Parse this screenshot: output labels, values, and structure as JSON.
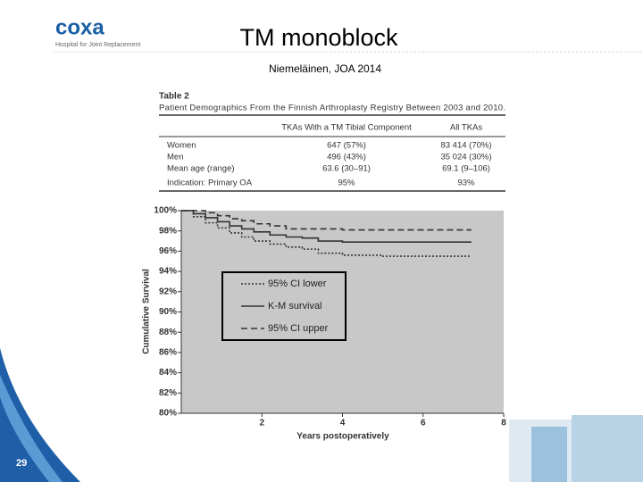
{
  "logo": {
    "name": "coxa",
    "tagline": "Hospital for Joint Replacement"
  },
  "slide": {
    "title": "TM monoblock",
    "subtitle": "Niemeläinen, JOA 2014",
    "page_number": "29"
  },
  "table": {
    "label": "Table 2",
    "caption": "Patient Demographics From the Finnish Arthroplasty Registry Between 2003 and 2010.",
    "columns": [
      "TKAs With a TM Tibial Component",
      "All TKAs"
    ],
    "rows": [
      [
        "Women",
        "647 (57%)",
        "83 414 (70%)"
      ],
      [
        "Men",
        "496 (43%)",
        "35 024 (30%)"
      ],
      [
        "Mean age (range)",
        "63.6 (30–91)",
        "69.1 (9–106)"
      ],
      [
        "Indication: Primary OA",
        "95%",
        "93%"
      ]
    ]
  },
  "chart_data": {
    "type": "step-line",
    "x_label": "Years postoperatively",
    "y_label": "Cumulative Survival",
    "x": [
      0,
      0.3,
      0.6,
      0.9,
      1.2,
      1.5,
      1.8,
      2.2,
      2.6,
      3.0,
      3.4,
      4.0,
      5.0,
      6.0,
      7.2
    ],
    "series": [
      {
        "name": "95% CI lower",
        "color": "#333333",
        "dash": "2,2",
        "values": [
          100,
          99.4,
          98.8,
          98.3,
          97.8,
          97.4,
          97.0,
          96.7,
          96.4,
          96.2,
          95.8,
          95.6,
          95.5,
          95.5,
          95.5
        ]
      },
      {
        "name": "K-M survival",
        "color": "#333333",
        "dash": "none",
        "values": [
          100,
          99.7,
          99.3,
          98.9,
          98.5,
          98.2,
          97.9,
          97.6,
          97.4,
          97.3,
          97.0,
          96.9,
          96.9,
          96.9,
          96.9
        ]
      },
      {
        "name": "95% CI upper",
        "color": "#333333",
        "dash": "7,4",
        "values": [
          100,
          100,
          99.8,
          99.5,
          99.2,
          99.0,
          98.7,
          98.5,
          98.2,
          98.2,
          98.2,
          98.1,
          98.1,
          98.1,
          98.1
        ]
      }
    ],
    "xlim": [
      0,
      8
    ],
    "xticks": [
      2,
      4,
      6,
      8
    ],
    "ylim": [
      80,
      100
    ],
    "yticks": [
      {
        "value": 80,
        "label": "80%"
      },
      {
        "value": 82,
        "label": "82%"
      },
      {
        "value": 84,
        "label": "84%"
      },
      {
        "value": 86,
        "label": "86%"
      },
      {
        "value": 88,
        "label": "88%"
      },
      {
        "value": 90,
        "label": "90%"
      },
      {
        "value": 92,
        "label": "92%"
      },
      {
        "value": 94,
        "label": "94%"
      },
      {
        "value": 96,
        "label": "96%"
      },
      {
        "value": 98,
        "label": "98%"
      },
      {
        "value": 100,
        "label": "100%"
      }
    ],
    "plot_background": "#c8c8c8"
  }
}
